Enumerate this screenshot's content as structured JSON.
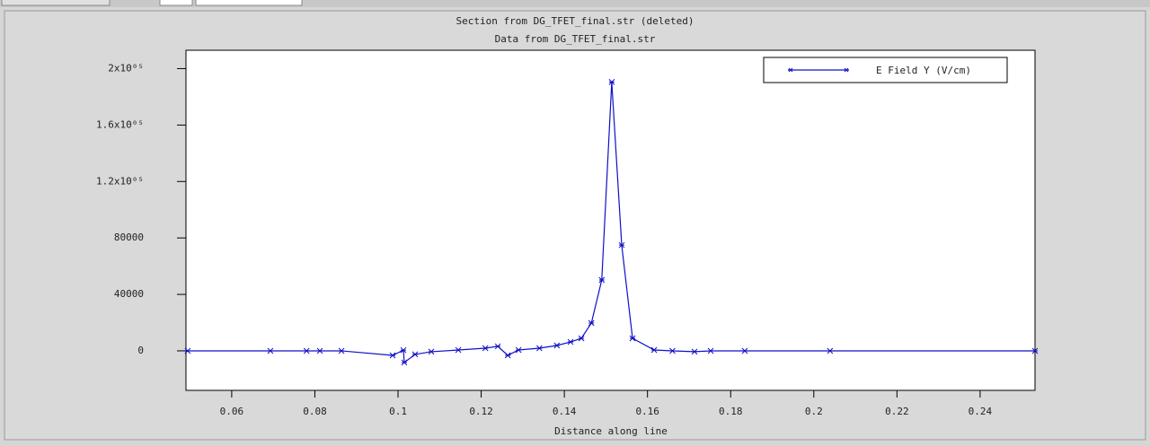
{
  "chart_data": {
    "type": "line",
    "title": "Section from DG_TFET_final.str (deleted)",
    "subtitle": "Data from DG_TFET_final.str",
    "x_label": "Distance along line",
    "x": [
      0.0494,
      0.0693,
      0.078,
      0.0812,
      0.0864,
      0.0987,
      0.1013,
      0.1015,
      0.1041,
      0.108,
      0.1145,
      0.121,
      0.124,
      0.1264,
      0.129,
      0.134,
      0.1382,
      0.1415,
      0.1441,
      0.1465,
      0.149,
      0.1514,
      0.1538,
      0.1564,
      0.1616,
      0.166,
      0.1713,
      0.1752,
      0.1834,
      0.2039,
      0.2532
    ],
    "series": [
      {
        "name": "E Field Y (V/cm)",
        "color": "#1010c8",
        "values": [
          0,
          0,
          0,
          0,
          0,
          -3200,
          500,
          -8250,
          -2500,
          -600,
          600,
          1900,
          3200,
          -3200,
          600,
          1900,
          3800,
          6300,
          8900,
          19700,
          50200,
          190500,
          74900,
          8900,
          600,
          0,
          -600,
          0,
          0,
          0,
          0
        ]
      }
    ],
    "xlim": [
      0.049,
      0.2532
    ],
    "xticks": [
      0.06,
      0.08,
      0.1,
      0.12,
      0.14,
      0.16,
      0.18,
      0.2,
      0.22,
      0.24
    ],
    "ylim": [
      -28000,
      213000
    ],
    "yticks": [
      0,
      40000,
      80000,
      {
        "value": 120000,
        "label": "1.2x10⁰⁵"
      },
      {
        "value": 160000,
        "label": "1.6x10⁰⁵"
      },
      {
        "value": 200000,
        "label": "2x10⁰⁵"
      }
    ],
    "grid": false,
    "legend": "top-right"
  }
}
